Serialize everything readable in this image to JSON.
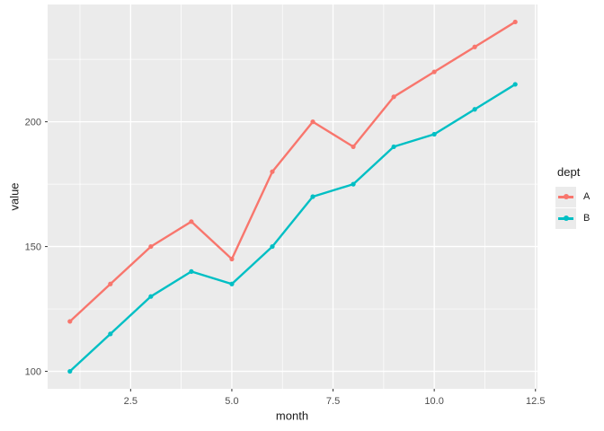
{
  "chart_data": {
    "type": "line",
    "title": "",
    "xlabel": "month",
    "ylabel": "value",
    "legend_title": "dept",
    "legend_position": "right",
    "grid": true,
    "x": [
      1,
      2,
      3,
      4,
      5,
      6,
      7,
      8,
      9,
      10,
      11,
      12
    ],
    "series": [
      {
        "name": "A",
        "color": "#F8766D",
        "values": [
          120,
          135,
          150,
          160,
          145,
          180,
          200,
          190,
          210,
          220,
          230,
          240
        ]
      },
      {
        "name": "B",
        "color": "#00BFC4",
        "values": [
          100,
          115,
          130,
          140,
          135,
          150,
          170,
          175,
          190,
          195,
          205,
          215
        ]
      }
    ],
    "x_ticks": {
      "values": [
        2.5,
        5,
        7.5,
        10,
        12.5
      ],
      "labels": [
        "2.5",
        "5.0",
        "7.5",
        "10.0",
        "12.5"
      ]
    },
    "y_ticks": {
      "values": [
        100,
        150,
        200
      ],
      "labels": [
        "100",
        "150",
        "200"
      ]
    },
    "x_minor_ticks": [
      1.25,
      3.75,
      6.25,
      8.75,
      11.25
    ],
    "y_minor_ticks": [
      125,
      175,
      225
    ],
    "xlim": [
      0.45,
      12.55
    ],
    "ylim": [
      93,
      247
    ],
    "colors": {
      "panel_bg": "#EBEBEB",
      "grid": "#FFFFFF",
      "tick_label": "#4D4D4D",
      "tick_mark": "#333333",
      "axis_title": "#1A1A1A",
      "legend_key_bg": "#EBEBEB"
    }
  }
}
